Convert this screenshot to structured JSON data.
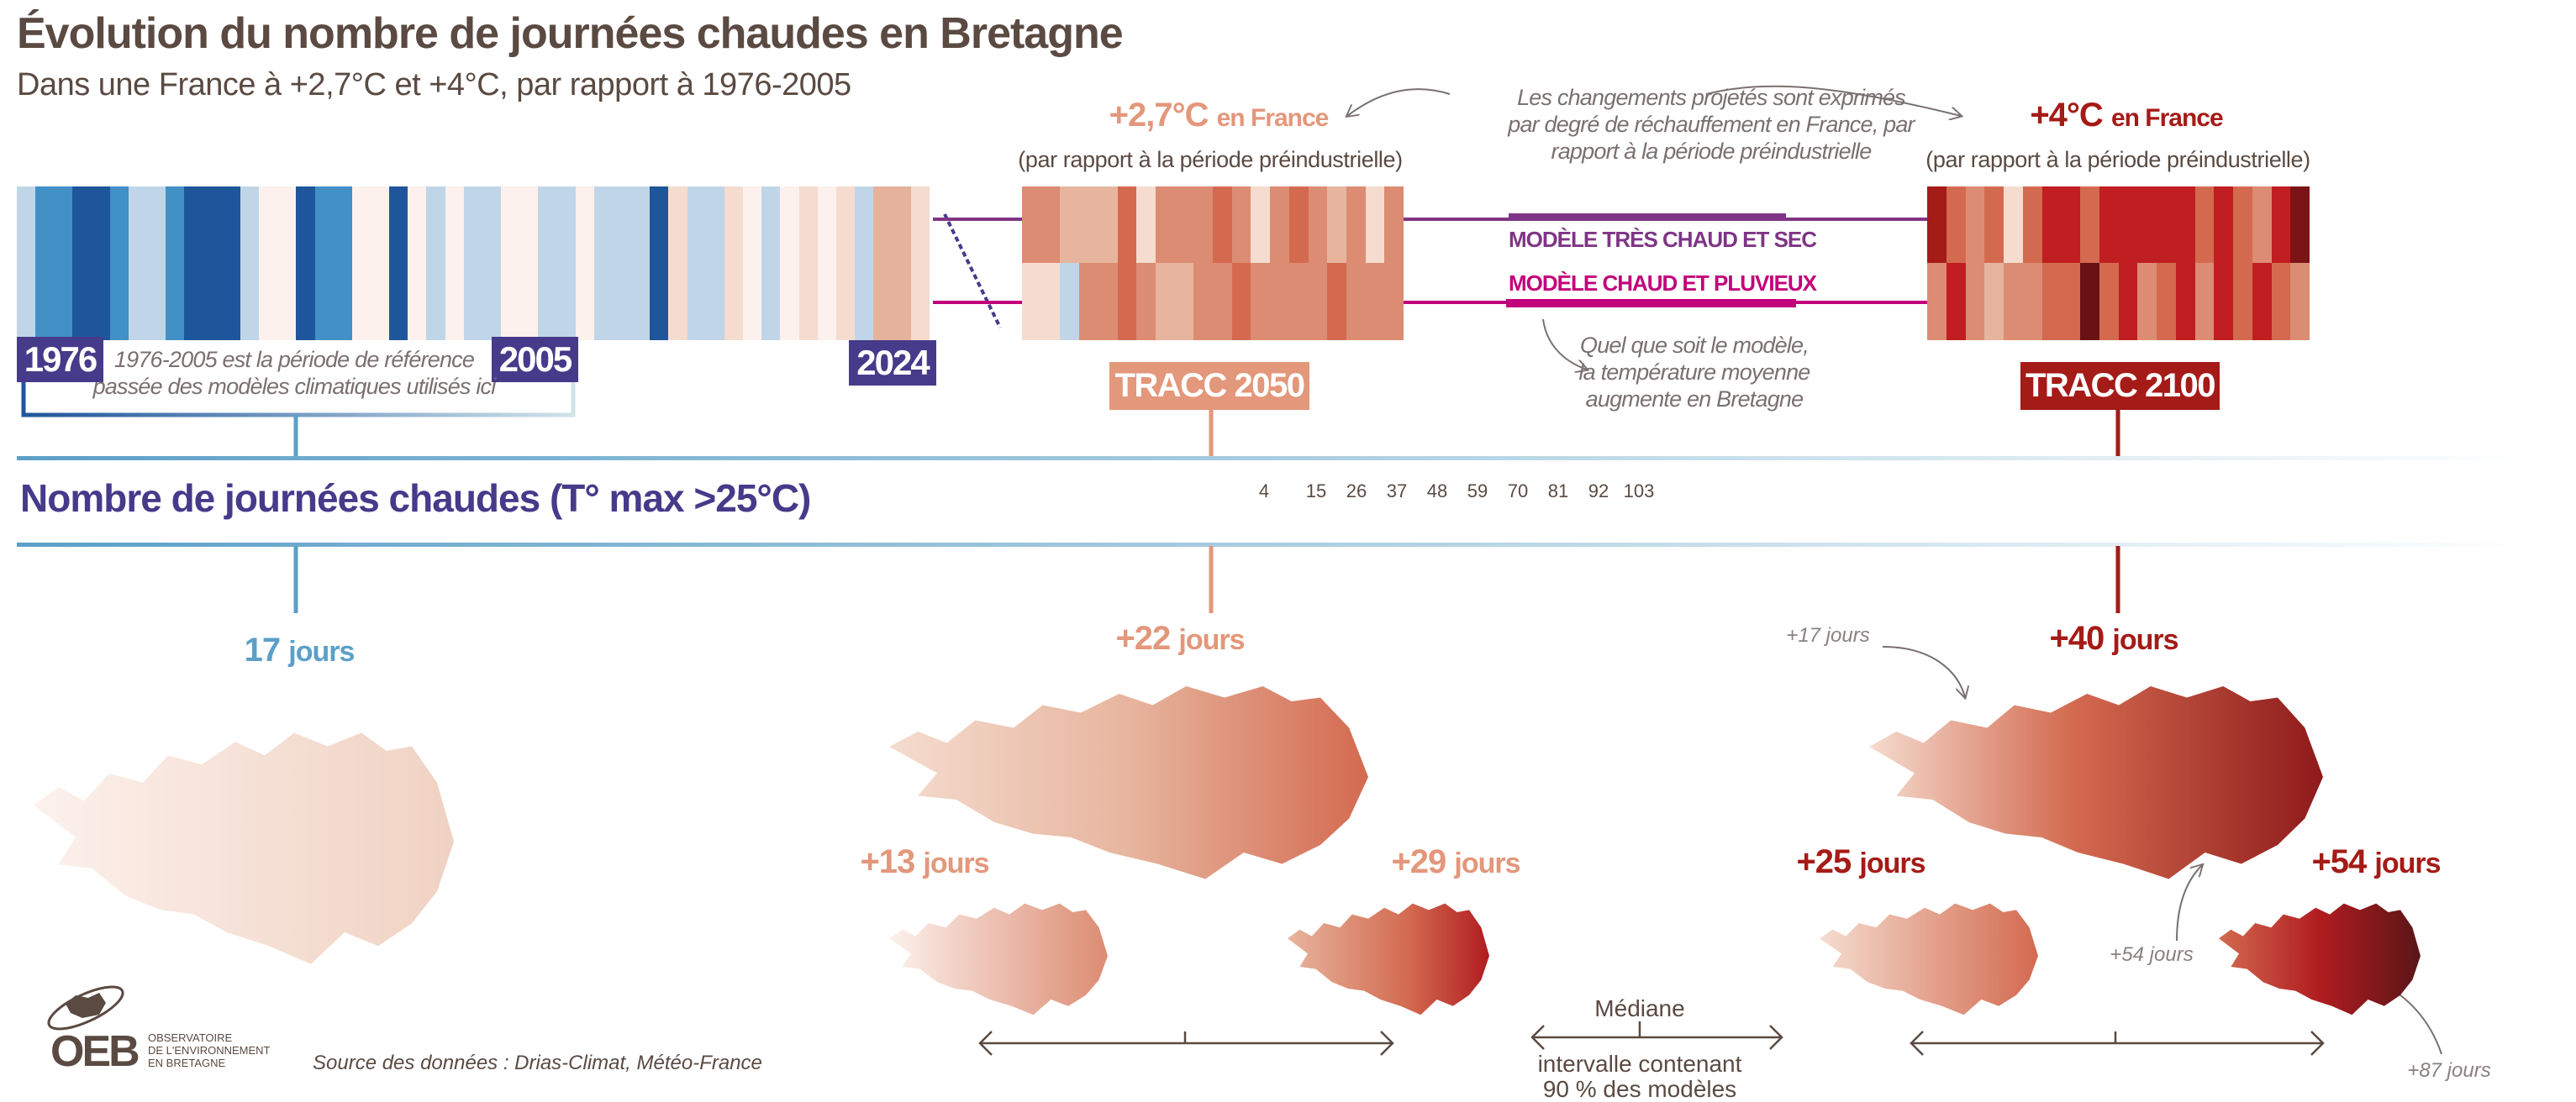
{
  "title": "Évolution du nombre de journées chaudes en Bretagne",
  "subtitle": "Dans une France à +2,7°C et +4°C, par rapport à 1976-2005",
  "observed": {
    "years": {
      "start": "1976",
      "ref_end": "2005",
      "end": "2024"
    },
    "reference_note": [
      "1976-2005 est la période de référence",
      "passée des modèles climatiques utilisés ici"
    ],
    "stripe_colors": [
      "#c0d6e8",
      "#4190c6",
      "#4190c6",
      "#1f559b",
      "#1f559b",
      "#4190c6",
      "#c0d6e8",
      "#c0d6e8",
      "#4190c6",
      "#1f559b",
      "#1f559b",
      "#1f559b",
      "#c0d6e8",
      "#fcf1ec",
      "#fcf1ec",
      "#1f559b",
      "#4190c6",
      "#4190c6",
      "#fcf1ec",
      "#fcf1ec",
      "#1f559b",
      "#fcf1ec",
      "#c0d6e8",
      "#fcf1ec",
      "#c0d6e8",
      "#c0d6e8",
      "#fcf1ec",
      "#fcf1ec",
      "#c0d6e8",
      "#c0d6e8",
      "#fcf1ec",
      "#c0d6e8",
      "#c0d6e8",
      "#c0d6e8",
      "#1f559b",
      "#f5dccf",
      "#c0d6e8",
      "#c0d6e8",
      "#f5dccf",
      "#fcf1ec",
      "#c0d6e8",
      "#fcf1ec",
      "#f5dccf",
      "#fcf1ec",
      "#f5dccf",
      "#c0d6e8",
      "#e5b39b",
      "#e5b39b",
      "#f5dccf"
    ]
  },
  "scenarios": [
    {
      "warming": "+2,7°C",
      "suffix": "en France",
      "reference": "(par rapport à la période préindustrielle)",
      "tracc": "TRACC 2050",
      "color": "#e3977b",
      "top_colors": [
        "#dc8c72",
        "#dc8c72",
        "#e7b59e",
        "#e7b59e",
        "#e7b59e",
        "#d36a50",
        "#f5dccf",
        "#dc8c72",
        "#dc8c72",
        "#dc8c72",
        "#d36a50",
        "#dc8c72",
        "#f5dccf",
        "#dc8c72",
        "#d36a50",
        "#dc8c72",
        "#e7b59e",
        "#dc8c72",
        "#f5dccf",
        "#dc8c72"
      ],
      "bottom_colors": [
        "#f5dccf",
        "#f5dccf",
        "#c0d6e8",
        "#dc8c72",
        "#dc8c72",
        "#d36a50",
        "#dc8c72",
        "#e7b59e",
        "#e7b59e",
        "#dc8c72",
        "#dc8c72",
        "#d36a50",
        "#dc8c72",
        "#dc8c72",
        "#dc8c72",
        "#dc8c72",
        "#d36a50",
        "#dc8c72",
        "#dc8c72",
        "#dc8c72"
      ],
      "median": "+22",
      "low": "+13",
      "high": "+29"
    },
    {
      "warming": "+4°C",
      "suffix": "en France",
      "reference": "(par rapport à la période préindustrielle)",
      "tracc": "TRACC 2100",
      "color": "#a51b17",
      "top_colors": [
        "#a51b17",
        "#d36a50",
        "#dc8c72",
        "#d36a50",
        "#f5dccf",
        "#d36a50",
        "#c01e20",
        "#c01e20",
        "#d36a50",
        "#c01e20",
        "#c01e20",
        "#c01e20",
        "#c01e20",
        "#c01e20",
        "#d36a50",
        "#c01e20",
        "#d36a50",
        "#dc8c72",
        "#c01e20",
        "#7a1416"
      ],
      "bottom_colors": [
        "#dc8c72",
        "#c01e20",
        "#dc8c72",
        "#e7b59e",
        "#dc8c72",
        "#dc8c72",
        "#d36a50",
        "#d36a50",
        "#6a1114",
        "#d36a50",
        "#c01e20",
        "#dc8c72",
        "#d36a50",
        "#c01e20",
        "#dc8c72",
        "#c01e20",
        "#d36a50",
        "#c01e20",
        "#d36a50",
        "#dc8c72"
      ],
      "median": "+40",
      "low": "+25",
      "high": "+54"
    }
  ],
  "annotations": {
    "projection_note": [
      "Les changements projetés sont exprimés",
      "par degré de réchauffement en France, par",
      "rapport à la période préindustrielle"
    ],
    "model_dry": "MODÈLE TRÈS CHAUD ET SEC",
    "model_wet": "MODÈLE CHAUD ET PLUVIEUX",
    "model_note": [
      "Quel que soit le modèle,",
      "la température moyenne",
      "augmente en Bretagne"
    ],
    "map_callouts": [
      "+17 jours",
      "+54 jours",
      "+87 jours"
    ]
  },
  "colors": {
    "dry_model": "#7f3585",
    "wet_model": "#c2007a",
    "title_purple": "#463a8a",
    "baseline_blue": "#5ba0c8"
  },
  "section_title": "Nombre de journées chaudes (T° max >25°C)",
  "legend": {
    "labels": [
      "4",
      "15",
      "26",
      "37",
      "48",
      "59",
      "70",
      "81",
      "92",
      "103"
    ],
    "colors": [
      "#fcf1ec",
      "#f5dccf",
      "#e7b59e",
      "#dc8c72",
      "#d36a50",
      "#b01c20",
      "#8e1a1a",
      "#6a1114",
      "#5a1517"
    ]
  },
  "baseline": {
    "value": "17",
    "unit": "jours"
  },
  "unit": "jours",
  "median_legend": {
    "median": "Médiane",
    "interval": [
      "intervalle contenant",
      "90 % des modèles"
    ]
  },
  "logo": {
    "letters": "OEB",
    "lines": [
      "OBSERVATOIRE",
      "DE L'ENVIRONNEMENT",
      "EN BRETAGNE"
    ]
  },
  "source": "Source des données : Drias-Climat, Météo-France"
}
